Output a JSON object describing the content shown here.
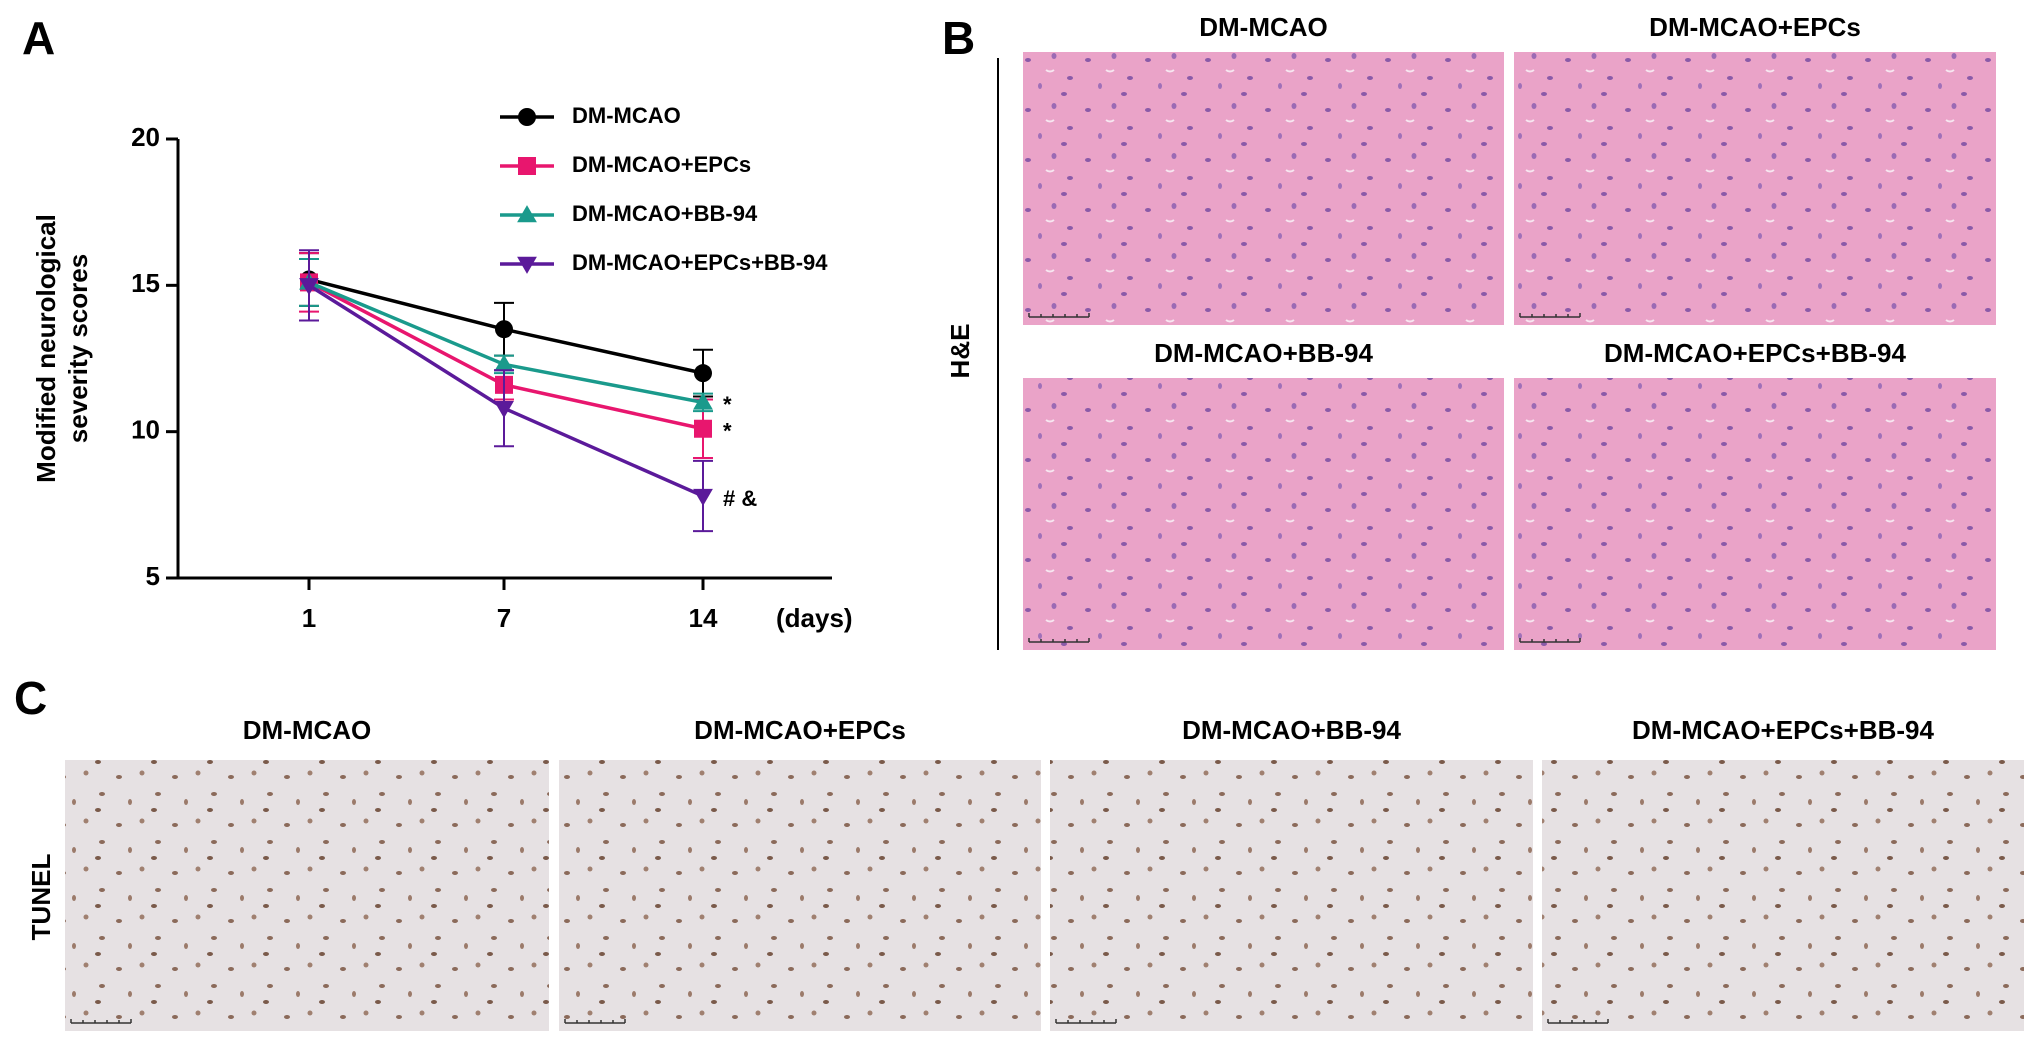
{
  "chart_data": {
    "type": "line",
    "panel": "A",
    "ylabel": [
      "Modified neurological",
      "severity scores"
    ],
    "xlabel": "(days)",
    "categories": [
      "1",
      "7",
      "14"
    ],
    "ylim": [
      5,
      20
    ],
    "yticks": [
      5,
      10,
      15,
      20
    ],
    "series": [
      {
        "name": "DM-MCAO",
        "color": "#000000",
        "marker": "circle",
        "values": [
          15.2,
          13.5,
          12.0
        ],
        "errors": [
          0.9,
          0.9,
          0.8
        ]
      },
      {
        "name": "DM-MCAO+EPCs",
        "color": "#e8166e",
        "marker": "square",
        "values": [
          15.1,
          11.6,
          10.1
        ],
        "errors": [
          1.0,
          0.5,
          1.0
        ]
      },
      {
        "name": "DM-MCAO+BB-94",
        "color": "#1a9a8c",
        "marker": "triangle",
        "values": [
          15.1,
          12.3,
          11.0
        ],
        "errors": [
          0.8,
          0.3,
          0.3
        ]
      },
      {
        "name": "DM-MCAO+EPCs+BB-94",
        "color": "#5b1a9a",
        "marker": "triangle-down",
        "values": [
          15.0,
          10.8,
          7.8
        ],
        "errors": [
          1.2,
          1.3,
          1.2
        ]
      }
    ],
    "annotations": [
      {
        "text": "*",
        "x": "14",
        "y": 11.0
      },
      {
        "text": "*",
        "x": "14",
        "y": 10.1
      },
      {
        "text": "# &",
        "x": "14",
        "y": 7.8
      }
    ]
  },
  "panel_b": {
    "label": "B",
    "row_label": "H&E",
    "titles": [
      "DM-MCAO",
      "DM-MCAO+EPCs",
      "DM-MCAO+BB-94",
      "DM-MCAO+EPCs+BB-94"
    ]
  },
  "panel_c": {
    "label": "C",
    "row_label": "TUNEL",
    "titles": [
      "DM-MCAO",
      "DM-MCAO+EPCs",
      "DM-MCAO+BB-94",
      "DM-MCAO+EPCs+BB-94"
    ]
  }
}
